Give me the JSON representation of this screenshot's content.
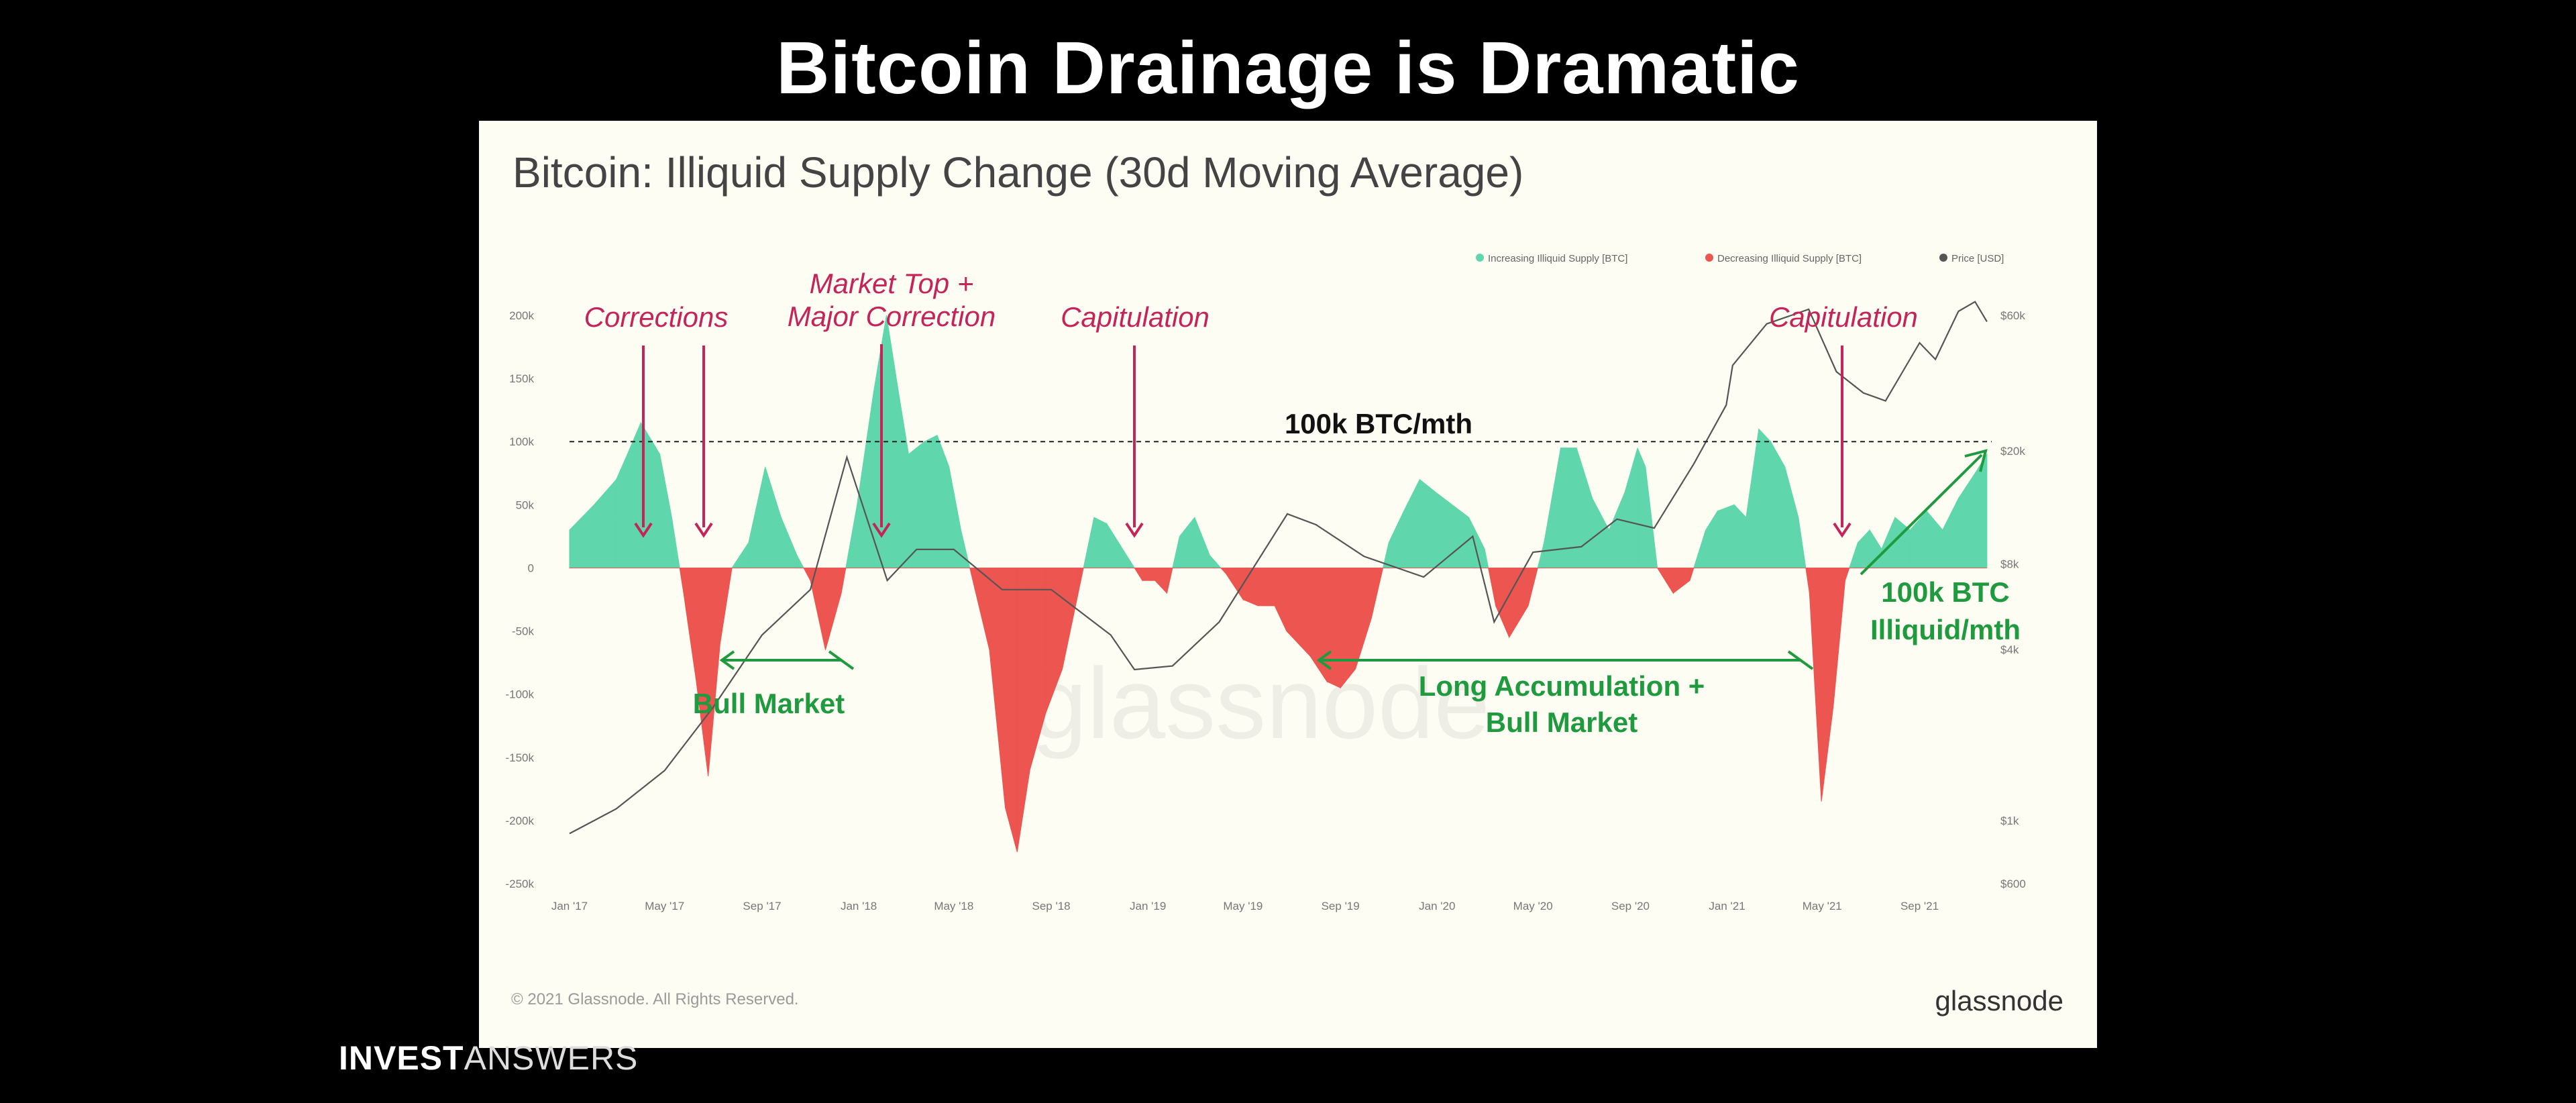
{
  "slide": {
    "title": "Bitcoin Drainage is Dramatic",
    "footer_brand_bold": "INVEST",
    "footer_brand_light": "ANSWERS"
  },
  "card": {
    "chart_title": "Bitcoin: Illiquid Supply Change (30d Moving Average)",
    "copyright": "© 2021 Glassnode. All Rights Reserved.",
    "brand": "glassnode",
    "watermark": "glassnode"
  },
  "colors": {
    "increasing": "#5fd6ac",
    "decreasing": "#ec5550",
    "price": "#555555",
    "annotation_red": "#c5245a",
    "annotation_green": "#1f9a3e"
  },
  "annotations": [
    {
      "text": "Corrections",
      "color": "red"
    },
    {
      "text": "Market Top +",
      "color": "red"
    },
    {
      "text": "Major Correction",
      "color": "red"
    },
    {
      "text": "Capitulation",
      "color": "red"
    },
    {
      "text": "Capitulation",
      "color": "red"
    },
    {
      "text": "100k BTC/mth",
      "color": "black"
    },
    {
      "text": "Bull Market",
      "color": "green"
    },
    {
      "text": "Long Accumulation +",
      "color": "green"
    },
    {
      "text": "Bull Market",
      "color": "green"
    },
    {
      "text": "100k BTC",
      "color": "green"
    },
    {
      "text": "Illiquid/mth",
      "color": "green"
    }
  ],
  "chart_data": {
    "type": "area",
    "title": "Bitcoin: Illiquid Supply Change (30d Moving Average)",
    "x_ticks": [
      "Jan '17",
      "May '17",
      "Sep '17",
      "Jan '18",
      "May '18",
      "Sep '18",
      "Jan '19",
      "May '19",
      "Sep '19",
      "Jan '20",
      "May '20",
      "Sep '20",
      "Jan '21",
      "May '21",
      "Sep '21"
    ],
    "y_left_ticks": [
      "200k",
      "150k",
      "100k",
      "50k",
      "0",
      "-50k",
      "-100k",
      "-150k",
      "-200k",
      "-250k"
    ],
    "y_left_range": [
      -250000,
      200000
    ],
    "y_right_ticks": [
      "$60k",
      "$20k",
      "$8k",
      "$4k",
      "$1k",
      "$600"
    ],
    "y_right_scale": "log",
    "reference_line": {
      "value": 100000,
      "style": "dashed"
    },
    "legend": [
      "Increasing Illiquid Supply [BTC]",
      "Decreasing Illiquid Supply [BTC]",
      "Price [USD]"
    ],
    "legend_position": "top-right",
    "grid": false,
    "supply_change": {
      "unit": "BTC",
      "x": [
        "2017-01-01",
        "2017-02-01",
        "2017-03-01",
        "2017-03-15",
        "2017-04-01",
        "2017-04-25",
        "2017-05-10",
        "2017-05-25",
        "2017-06-10",
        "2017-06-25",
        "2017-07-10",
        "2017-07-25",
        "2017-08-15",
        "2017-09-05",
        "2017-09-25",
        "2017-10-15",
        "2017-11-01",
        "2017-11-20",
        "2017-12-10",
        "2017-12-30",
        "2018-01-20",
        "2018-02-05",
        "2018-02-20",
        "2018-03-05",
        "2018-03-25",
        "2018-04-10",
        "2018-04-25",
        "2018-05-10",
        "2018-05-25",
        "2018-06-15",
        "2018-07-05",
        "2018-07-20",
        "2018-08-05",
        "2018-08-25",
        "2018-09-15",
        "2018-10-05",
        "2018-10-25",
        "2018-11-10",
        "2018-11-25",
        "2018-12-10",
        "2018-12-25",
        "2019-01-10",
        "2019-01-25",
        "2019-02-10",
        "2019-03-01",
        "2019-03-20",
        "2019-04-10",
        "2019-05-01",
        "2019-05-20",
        "2019-06-10",
        "2019-06-25",
        "2019-07-10",
        "2019-07-25",
        "2019-08-15",
        "2019-09-01",
        "2019-09-20",
        "2019-10-10",
        "2019-11-01",
        "2019-11-20",
        "2019-12-10",
        "2019-12-30",
        "2020-01-20",
        "2020-02-10",
        "2020-03-01",
        "2020-03-15",
        "2020-04-01",
        "2020-04-25",
        "2020-05-15",
        "2020-06-05",
        "2020-06-25",
        "2020-07-15",
        "2020-08-05",
        "2020-08-25",
        "2020-09-10",
        "2020-09-20",
        "2020-10-05",
        "2020-10-25",
        "2020-11-15",
        "2020-12-05",
        "2020-12-20",
        "2021-01-10",
        "2021-01-25",
        "2021-02-10",
        "2021-02-25",
        "2021-03-15",
        "2021-04-01",
        "2021-04-15",
        "2021-04-30",
        "2021-05-15",
        "2021-05-30",
        "2021-06-15",
        "2021-06-30",
        "2021-07-15",
        "2021-08-01",
        "2021-08-20",
        "2021-09-10",
        "2021-09-30",
        "2021-10-20",
        "2021-11-10",
        "2021-11-25"
      ],
      "values": [
        30000,
        50000,
        70000,
        90000,
        115000,
        90000,
        40000,
        -20000,
        -90000,
        -165000,
        -60000,
        0,
        20000,
        80000,
        40000,
        10000,
        -10000,
        -65000,
        -20000,
        50000,
        140000,
        200000,
        140000,
        90000,
        100000,
        105000,
        80000,
        30000,
        -10000,
        -65000,
        -190000,
        -225000,
        -160000,
        -115000,
        -80000,
        -20000,
        40000,
        35000,
        20000,
        5000,
        -10000,
        -10000,
        -20000,
        25000,
        40000,
        10000,
        -5000,
        -25000,
        -30000,
        -30000,
        -50000,
        -60000,
        -70000,
        -90000,
        -95000,
        -80000,
        -40000,
        20000,
        45000,
        70000,
        60000,
        50000,
        40000,
        15000,
        -30000,
        -55000,
        -30000,
        20000,
        95000,
        95000,
        55000,
        30000,
        60000,
        95000,
        80000,
        0,
        -20000,
        -10000,
        30000,
        45000,
        50000,
        40000,
        110000,
        100000,
        80000,
        40000,
        -20000,
        -185000,
        -110000,
        -10000,
        20000,
        30000,
        15000,
        40000,
        30000,
        45000,
        30000,
        55000,
        75000,
        90000
      ]
    },
    "price": {
      "unit": "USD",
      "x": [
        "2017-01-01",
        "2017-03-01",
        "2017-05-01",
        "2017-07-01",
        "2017-09-01",
        "2017-11-01",
        "2017-12-17",
        "2018-02-06",
        "2018-03-15",
        "2018-05-01",
        "2018-07-01",
        "2018-09-01",
        "2018-11-15",
        "2018-12-15",
        "2019-02-01",
        "2019-04-01",
        "2019-06-26",
        "2019-08-01",
        "2019-10-01",
        "2019-12-15",
        "2020-02-15",
        "2020-03-13",
        "2020-05-01",
        "2020-07-01",
        "2020-08-15",
        "2020-10-01",
        "2020-11-20",
        "2020-12-31",
        "2021-01-08",
        "2021-02-20",
        "2021-04-14",
        "2021-05-19",
        "2021-06-22",
        "2021-07-20",
        "2021-09-01",
        "2021-09-21",
        "2021-10-20",
        "2021-11-10",
        "2021-11-25"
      ],
      "values": [
        900,
        1100,
        1500,
        2500,
        4500,
        6500,
        19000,
        7000,
        9000,
        9000,
        6500,
        6500,
        4500,
        3400,
        3500,
        5000,
        12000,
        11000,
        8500,
        7200,
        10000,
        5000,
        8800,
        9200,
        11500,
        10700,
        18000,
        29000,
        40000,
        56000,
        63000,
        38000,
        32000,
        30000,
        48000,
        42000,
        62000,
        67000,
        57000
      ]
    }
  }
}
